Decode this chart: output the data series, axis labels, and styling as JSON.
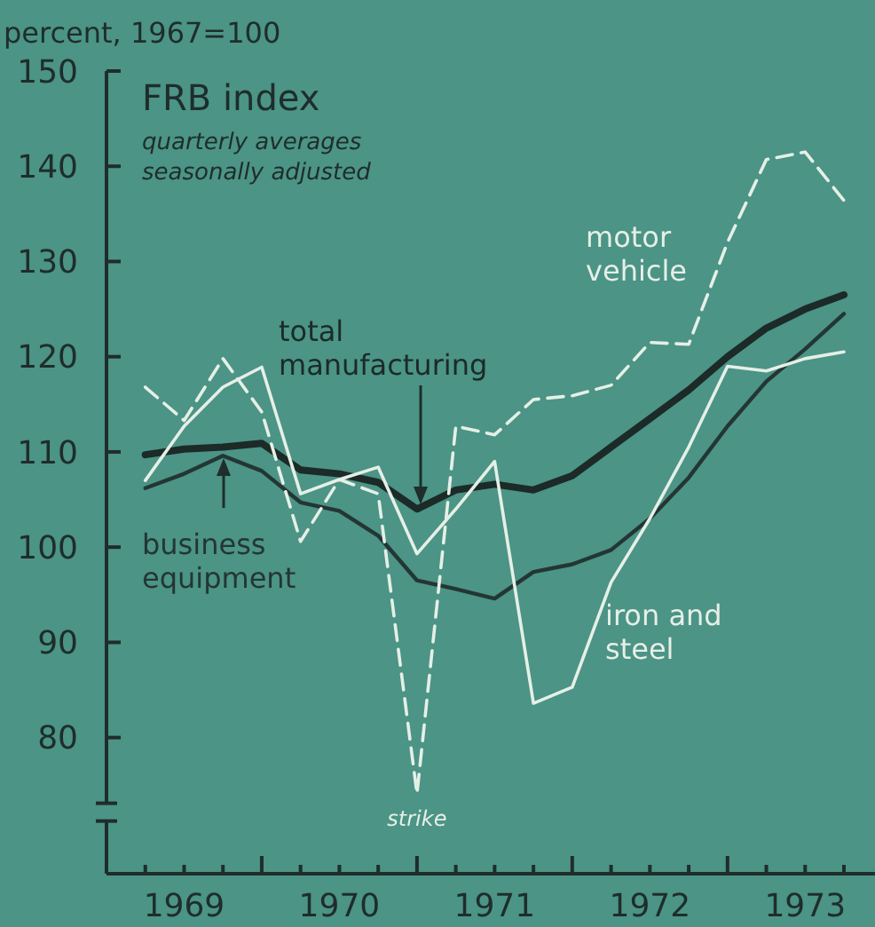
{
  "chart_data": {
    "type": "line",
    "title": "FRB index",
    "subtitle": "quarterly averages\nseasonally adjusted",
    "ylabel": "percent, 1967=100",
    "x": [
      1969.25,
      1969.5,
      1969.75,
      1970,
      1970.25,
      1970.5,
      1970.75,
      1971,
      1971.25,
      1971.5,
      1971.75,
      1972,
      1972.25,
      1972.5,
      1972.75,
      1973,
      1973.25,
      1973.5,
      1973.75
    ],
    "series": [
      {
        "name": "total manufacturing",
        "color": "#1c2a28",
        "values": [
          109.7,
          110.3,
          110.5,
          110.9,
          108.1,
          107.7,
          106.8,
          104,
          106,
          106.6,
          106,
          107.5,
          110.5,
          113.5,
          116.5,
          120,
          123,
          125,
          126.5
        ]
      },
      {
        "name": "business equipment",
        "color": "#243634",
        "values": [
          106.2,
          107.7,
          109.6,
          108,
          104.7,
          103.8,
          101.2,
          96.5,
          95.6,
          94.6,
          97.4,
          98.2,
          99.7,
          103,
          107.3,
          112.7,
          117.4,
          120.8,
          124.5
        ]
      },
      {
        "name": "iron and steel",
        "color": "#e6efe6",
        "values": [
          107,
          112.7,
          116.8,
          118.9,
          105.6,
          107.1,
          108.4,
          99.3,
          104,
          109,
          83.6,
          85.3,
          96.3,
          103,
          110.5,
          119,
          118.5,
          119.8,
          120.5
        ]
      },
      {
        "name": "motor vehicle",
        "color": "#e6efe6",
        "line_style": "dashed",
        "values": [
          116.8,
          113.3,
          119.8,
          114.2,
          100.6,
          107.1,
          105.6,
          74.1,
          112.7,
          111.8,
          115.5,
          115.9,
          117,
          121.5,
          121.3,
          132,
          140.7,
          141.5,
          136.4
        ]
      }
    ],
    "annotations": [
      {
        "text": "strike",
        "x": 1971,
        "y": 74.1
      }
    ],
    "xlim": [
      1969,
      1973.95
    ],
    "xticks": [
      {
        "value": 1969.25,
        "label": null
      },
      {
        "value": 1969.5,
        "label": "1969"
      },
      {
        "value": 1969.75,
        "label": null
      },
      {
        "value": 1970,
        "label": null
      },
      {
        "value": 1970.25,
        "label": null
      },
      {
        "value": 1970.5,
        "label": "1970"
      },
      {
        "value": 1970.75,
        "label": null
      },
      {
        "value": 1971,
        "label": null
      },
      {
        "value": 1971.25,
        "label": null
      },
      {
        "value": 1971.5,
        "label": "1971"
      },
      {
        "value": 1971.75,
        "label": null
      },
      {
        "value": 1972,
        "label": null
      },
      {
        "value": 1972.25,
        "label": null
      },
      {
        "value": 1972.5,
        "label": "1972"
      },
      {
        "value": 1972.75,
        "label": null
      },
      {
        "value": 1973,
        "label": null
      },
      {
        "value": 1973.25,
        "label": null
      },
      {
        "value": 1973.5,
        "label": "1973"
      },
      {
        "value": 1973.75,
        "label": null
      }
    ],
    "ylim": [
      65.7,
      150
    ],
    "yticks": [
      80,
      90,
      100,
      110,
      120,
      130,
      140,
      150
    ],
    "grid": false
  }
}
